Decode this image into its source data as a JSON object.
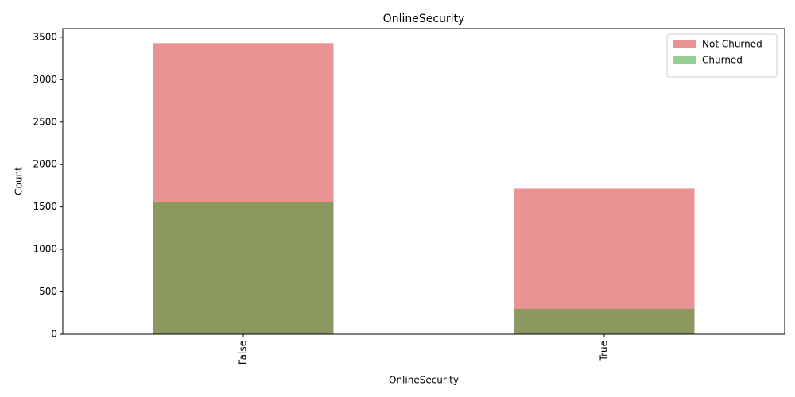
{
  "chart_data": {
    "type": "bar",
    "title": "OnlineSecurity",
    "x_label": "OnlineSecurity",
    "y_label": "Count",
    "categories": [
      "False",
      "True"
    ],
    "series": [
      {
        "name": "Not Churned",
        "color": "#d62728",
        "values": [
          3430,
          1717
        ]
      },
      {
        "name": "Churned",
        "color": "#2ca02c",
        "values": [
          1558,
          300
        ]
      }
    ],
    "ylim": [
      0,
      3601.5
    ],
    "yticks": [
      0,
      500,
      1000,
      1500,
      2000,
      2500,
      3000,
      3500
    ],
    "opacity": 0.5,
    "legend": "upper right"
  }
}
